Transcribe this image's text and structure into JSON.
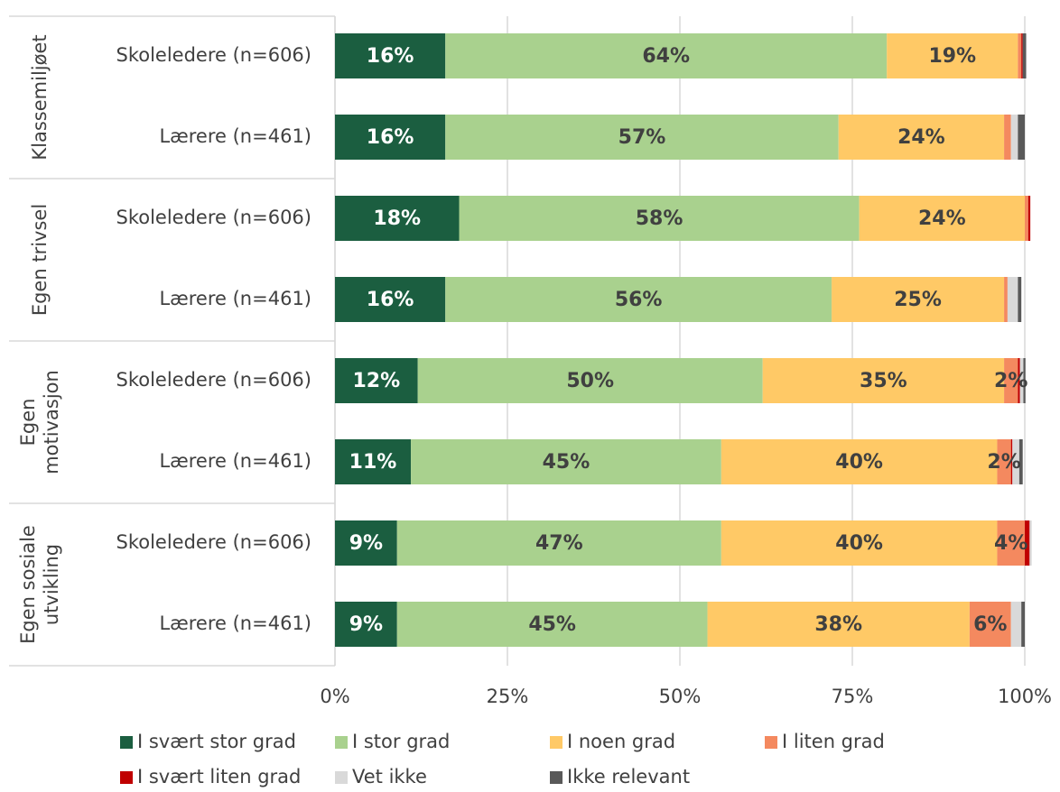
{
  "chart_data": {
    "type": "stacked_bar_horizontal",
    "groups": [
      [
        "Klassemiljøet"
      ],
      [
        "Egen trivsel"
      ],
      [
        "Egen",
        "motivasjon"
      ],
      [
        "Egen sosiale",
        "utvikling"
      ]
    ],
    "categories": [
      "Skoleledere (n=606)",
      "Lærere (n=461)",
      "Skoleledere (n=606)",
      "Lærere (n=461)",
      "Skoleledere (n=606)",
      "Lærere (n=461)",
      "Skoleledere (n=606)",
      "Lærere (n=461)"
    ],
    "series": [
      {
        "name": "I svært stor grad",
        "color": "#1b5e40",
        "label_color": "#ffffff",
        "values": [
          16,
          16,
          18,
          16,
          12,
          11,
          9,
          9
        ],
        "value_labels": [
          "16%",
          "16%",
          "18%",
          "16%",
          "12%",
          "11%",
          "9%",
          "9%"
        ]
      },
      {
        "name": "I stor grad",
        "color": "#a9d18e",
        "label_color": "#404040",
        "values": [
          64,
          57,
          58,
          56,
          50,
          45,
          47,
          45
        ],
        "value_labels": [
          "64%",
          "57%",
          "58%",
          "56%",
          "50%",
          "45%",
          "47%",
          "45%"
        ]
      },
      {
        "name": "I noen grad",
        "color": "#ffc966",
        "label_color": "#404040",
        "values": [
          19,
          24,
          24,
          25,
          35,
          40,
          40,
          38
        ],
        "value_labels": [
          "19%",
          "24%",
          "24%",
          "25%",
          "35%",
          "40%",
          "40%",
          "38%"
        ]
      },
      {
        "name": "I liten grad",
        "color": "#f4895f",
        "label_color": "#404040",
        "values": [
          0.5,
          1,
          0.5,
          0.5,
          2,
          2,
          4,
          6
        ],
        "value_labels": [
          null,
          null,
          null,
          null,
          "2%",
          "2%",
          "4%",
          "6%"
        ]
      },
      {
        "name": "I svært liten grad",
        "color": "#c00000",
        "label_color": "#404040",
        "values": [
          0.2,
          0,
          0.3,
          0,
          0.3,
          0.2,
          0.7,
          0
        ]
      },
      {
        "name": "Vet ikke",
        "color": "#d9d9d9",
        "label_color": "#404040",
        "values": [
          0,
          1,
          0,
          1.5,
          0.5,
          1,
          0.3,
          1.5
        ]
      },
      {
        "name": "Ikke relevant",
        "color": "#595959",
        "label_color": "#404040",
        "values": [
          0.5,
          1,
          0,
          0.5,
          0.3,
          0.5,
          0,
          0.5
        ]
      }
    ],
    "xlim": [
      0,
      100
    ],
    "xticks": [
      {
        "value": 0,
        "label": "0%"
      },
      {
        "value": 25,
        "label": "25%"
      },
      {
        "value": 50,
        "label": "50%"
      },
      {
        "value": 75,
        "label": "75%"
      },
      {
        "value": 100,
        "label": "100%"
      }
    ],
    "grid": true
  }
}
